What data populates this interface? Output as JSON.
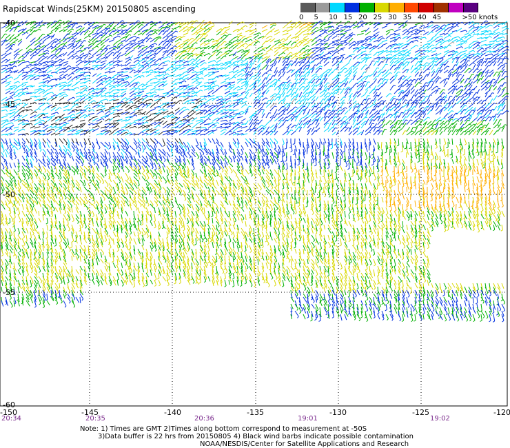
{
  "title": "Rapidscat Winds(25KM) 20150805 ascending",
  "colorbar": {
    "bins": [
      {
        "label": "0",
        "color": "#5a5a5a"
      },
      {
        "label": "5",
        "color": "#9a9a9a"
      },
      {
        "label": "10",
        "color": "#00d8ff"
      },
      {
        "label": "15",
        "color": "#0030e0"
      },
      {
        "label": "20",
        "color": "#00b000"
      },
      {
        "label": "25",
        "color": "#d8d800"
      },
      {
        "label": "30",
        "color": "#ffae00"
      },
      {
        "label": "35",
        "color": "#ff4800"
      },
      {
        "label": "40",
        "color": "#d00000"
      },
      {
        "label": "45",
        "color": "#a03000"
      },
      {
        "label": "",
        "color": "#c000c0"
      },
      {
        "label": ">50 knots",
        "color": "#5a0080"
      }
    ]
  },
  "axes": {
    "lat_labels": [
      "-40",
      "-45",
      "-50",
      "-55",
      "-60"
    ],
    "lon_labels": [
      "-150",
      "-145",
      "-140",
      "-135",
      "-130",
      "-125",
      "-120"
    ]
  },
  "times": [
    "20:34",
    "20:35",
    "20:36",
    "19:01",
    "19:02"
  ],
  "notes": {
    "line1": "Note: 1) Times are GMT 2)Times along bottom correspond to measurement at -50S",
    "line2": "3)Data buffer is 22 hrs from 20150805 4) Black wind barbs indicate possible contamination",
    "line3": "NOAA/NESDIS/Center for Satellite Applications and Research"
  }
}
